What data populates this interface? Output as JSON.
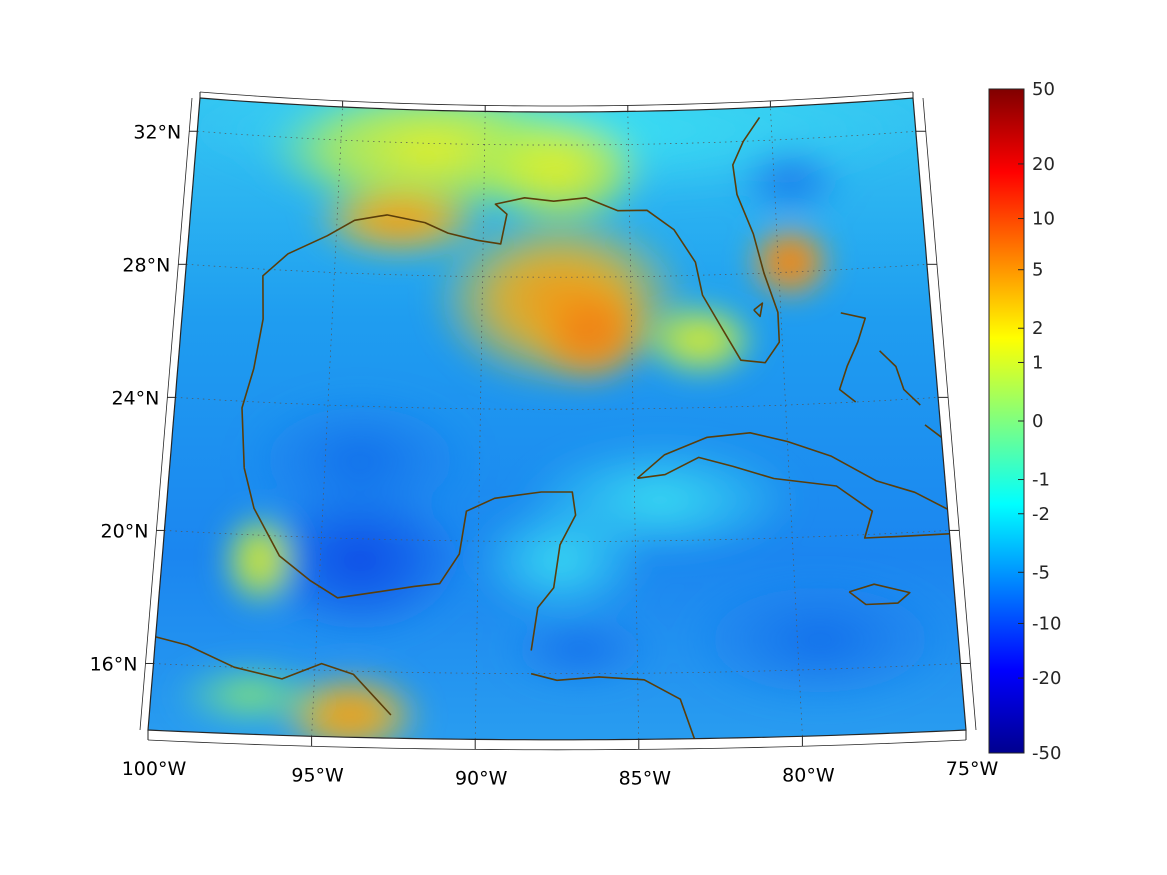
{
  "map": {
    "projection": "conic",
    "lon_range": [
      -100,
      -75
    ],
    "lat_range": [
      14,
      33
    ],
    "grid_lines": "dotted",
    "coastline_color": "#5a3e0a",
    "latitude_labels": [
      {
        "value": 32,
        "text": "32°N"
      },
      {
        "value": 28,
        "text": "28°N"
      },
      {
        "value": 24,
        "text": "24°N"
      },
      {
        "value": 20,
        "text": "20°N"
      },
      {
        "value": 16,
        "text": "16°N"
      }
    ],
    "longitude_labels": [
      {
        "value": -100,
        "text": "100°W"
      },
      {
        "value": -95,
        "text": "95°W"
      },
      {
        "value": -90,
        "text": "90°W"
      },
      {
        "value": -85,
        "text": "85°W"
      },
      {
        "value": -80,
        "text": "80°W"
      },
      {
        "value": -75,
        "text": "75°W"
      }
    ]
  },
  "colorbar": {
    "colormap": "jet",
    "scale": "symmetric-log",
    "range": [
      -50,
      50
    ],
    "tick_labels": [
      "50",
      "20",
      "10",
      "5",
      "2",
      "1",
      "0",
      "-1",
      "-2",
      "-5",
      "-10",
      "-20",
      "-50"
    ]
  }
}
